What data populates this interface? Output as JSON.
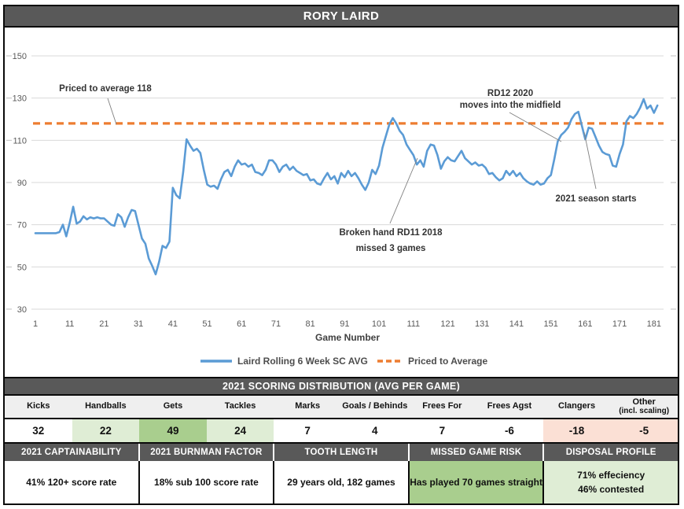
{
  "title": "RORY LAIRD",
  "colors": {
    "header_bar": "#595959",
    "series_blue": "#5B9BD5",
    "priced_orange": "#ED7D31",
    "grid": "#D9D9D9",
    "green": "#A9CE8E",
    "green_light": "#DFEDD5",
    "red_light": "#FBE0D5"
  },
  "chart_data": {
    "type": "line",
    "title": "",
    "xlabel": "Game Number",
    "ylabel": "",
    "x_ticks": [
      1,
      11,
      21,
      31,
      41,
      51,
      61,
      71,
      81,
      91,
      101,
      111,
      121,
      131,
      141,
      151,
      161,
      171,
      181
    ],
    "y_ticks": [
      30,
      50,
      70,
      90,
      110,
      130,
      150
    ],
    "ylim": [
      30,
      150
    ],
    "xlim": [
      1,
      182
    ],
    "grid": true,
    "legend_position": "bottom",
    "series": [
      {
        "name": "Laird Rolling 6 Week SC AVG",
        "type": "line",
        "color": "#5B9BD5",
        "x_start_game": 1,
        "values": [
          66,
          66,
          66,
          66,
          66,
          66,
          66,
          66.5,
          70,
          64.5,
          71,
          78.5,
          70.5,
          71.5,
          74,
          72.5,
          73.5,
          73,
          73.5,
          73,
          73,
          71.5,
          70,
          69.5,
          75,
          73.5,
          69,
          73.5,
          77,
          76.5,
          70,
          63.5,
          61,
          54,
          50.5,
          46.5,
          52.5,
          60,
          59,
          62,
          87.5,
          84,
          82.5,
          95,
          110.5,
          107.5,
          105,
          106,
          104,
          96,
          89,
          88,
          88.5,
          87,
          91.5,
          95,
          96,
          93,
          97.5,
          100.5,
          98.5,
          99,
          97.5,
          98.5,
          95,
          94.5,
          93.5,
          96,
          100.5,
          100.5,
          98.5,
          95,
          97.5,
          98.5,
          96,
          97.5,
          95.5,
          94.5,
          93.5,
          94,
          91,
          91.5,
          89.5,
          89,
          92,
          94.5,
          91.5,
          93,
          89.5,
          94.5,
          92.5,
          95.5,
          93,
          94.5,
          92,
          89,
          86.5,
          90,
          96,
          94,
          98,
          106.5,
          112,
          117.5,
          120.5,
          118,
          114.5,
          112.5,
          108,
          105.5,
          103,
          98.5,
          100.5,
          97.5,
          105,
          108,
          107.5,
          103,
          96.5,
          100,
          102,
          100.5,
          100,
          102.5,
          105,
          101.5,
          100,
          98.5,
          99.5,
          98,
          98.5,
          97,
          94,
          94.5,
          92.5,
          91,
          92,
          95.5,
          93.5,
          95.5,
          93,
          94.5,
          92,
          90.5,
          89.5,
          89,
          90.5,
          89,
          89.5,
          92,
          93.5,
          101,
          109.5,
          112.5,
          114,
          116,
          120,
          122.5,
          123.5,
          117,
          110.5,
          116,
          115.5,
          111.5,
          107.5,
          104.5,
          103.5,
          103,
          98,
          97.5,
          103.5,
          108,
          119,
          121.5,
          120.5,
          122.5,
          125.5,
          129.5,
          125,
          126.5,
          123,
          126.5
        ]
      },
      {
        "name": "Priced to Average",
        "type": "hline",
        "style": "dashed",
        "color": "#ED7D31",
        "value": 118
      }
    ],
    "annotations": {
      "priced": {
        "line1": "Priced to average 118"
      },
      "broken_hand": {
        "line1": "Broken hand RD11 2018",
        "line2": "missed 3 games"
      },
      "rd12": {
        "line1": "RD12 2020",
        "line2": "moves into the midfield"
      },
      "season": {
        "line1": "2021 season starts"
      }
    }
  },
  "scoring": {
    "header": "2021 SCORING DISTRIBUTION (AVG PER GAME)",
    "columns": [
      {
        "label": "Kicks",
        "label2": "",
        "value": "32",
        "tone": "white"
      },
      {
        "label": "Handballs",
        "label2": "",
        "value": "22",
        "tone": "green-light"
      },
      {
        "label": "Gets",
        "label2": "",
        "value": "49",
        "tone": "green"
      },
      {
        "label": "Tackles",
        "label2": "",
        "value": "24",
        "tone": "green-light"
      },
      {
        "label": "Marks",
        "label2": "",
        "value": "7",
        "tone": "white"
      },
      {
        "label": "Goals / Behinds",
        "label2": "",
        "value": "4",
        "tone": "white"
      },
      {
        "label": "Frees For",
        "label2": "",
        "value": "7",
        "tone": "white"
      },
      {
        "label": "Frees Agst",
        "label2": "",
        "value": "-6",
        "tone": "white"
      },
      {
        "label": "Clangers",
        "label2": "",
        "value": "-18",
        "tone": "red-light"
      },
      {
        "label": "Other",
        "label2": "(incl. scaling)",
        "value": "-5",
        "tone": "red-light"
      }
    ]
  },
  "stats": {
    "sections": [
      {
        "header": "2021 CAPTAINABILITY",
        "line1": "41% 120+ score rate",
        "line2": "",
        "tone": "white"
      },
      {
        "header": "2021 BURNMAN FACTOR",
        "line1": "18% sub 100 score rate",
        "line2": "",
        "tone": "white"
      },
      {
        "header": "TOOTH LENGTH",
        "line1": "29 years old, 182 games",
        "line2": "",
        "tone": "white"
      },
      {
        "header": "MISSED GAME RISK",
        "line1": "Has played 70 games straight",
        "line2": "",
        "tone": "green"
      },
      {
        "header": "DISPOSAL PROFILE",
        "line1": "71% effeciency",
        "line2": "46% contested",
        "tone": "green-light"
      }
    ]
  }
}
